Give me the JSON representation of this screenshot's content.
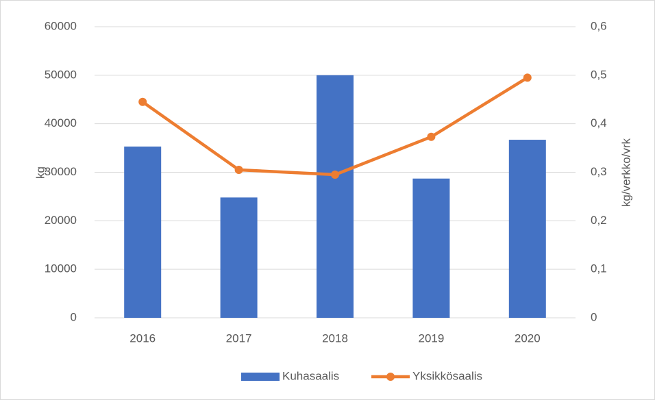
{
  "chart_data": {
    "type": "bar-line",
    "categories": [
      "2016",
      "2017",
      "2018",
      "2019",
      "2020"
    ],
    "series": [
      {
        "name": "Kuhasaalis",
        "type": "bar",
        "color": "#4472c4",
        "values": [
          35300,
          24800,
          50000,
          28700,
          36700
        ]
      },
      {
        "name": "Yksikkösaalis",
        "type": "line",
        "axis": "y2",
        "color": "#ed7d31",
        "values": [
          0.445,
          0.305,
          0.295,
          0.373,
          0.495
        ]
      }
    ],
    "ylabel": "kg",
    "y2label": "kg/verkko/vrk",
    "ylim": [
      0,
      60000
    ],
    "yticks": [
      0,
      10000,
      20000,
      30000,
      40000,
      50000,
      60000
    ],
    "y2lim": [
      0,
      0.6
    ],
    "y2ticks": [
      0,
      {
        "value": 0.1,
        "label": "0,1"
      },
      {
        "value": 0.2,
        "label": "0,2"
      },
      {
        "value": 0.3,
        "label": "0,3"
      },
      {
        "value": 0.4,
        "label": "0,4"
      },
      {
        "value": 0.5,
        "label": "0,5"
      },
      {
        "value": 0.6,
        "label": "0,6"
      }
    ],
    "grid": true,
    "legend": "bottom"
  }
}
